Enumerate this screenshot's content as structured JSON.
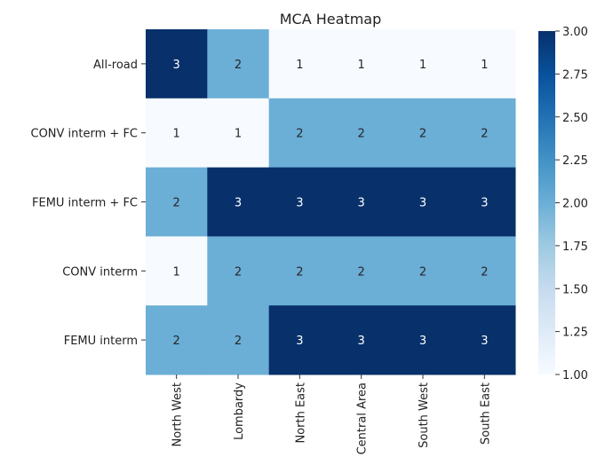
{
  "chart_data": {
    "type": "heatmap",
    "title": "MCA Heatmap",
    "xlabel": "",
    "ylabel": "",
    "rows": [
      "All-road",
      "CONV interm + FC",
      "FEMU interm + FC",
      "CONV interm",
      "FEMU interm"
    ],
    "columns": [
      "North West",
      "Lombardy",
      "North East",
      "Central Area",
      "South West",
      "South East"
    ],
    "values": [
      [
        3,
        2,
        1,
        1,
        1,
        1
      ],
      [
        1,
        1,
        2,
        2,
        2,
        2
      ],
      [
        2,
        3,
        3,
        3,
        3,
        3
      ],
      [
        1,
        2,
        2,
        2,
        2,
        2
      ],
      [
        2,
        2,
        3,
        3,
        3,
        3
      ]
    ],
    "colorbar": {
      "min": 1.0,
      "max": 3.0,
      "ticks": [
        "1.00",
        "1.25",
        "1.50",
        "1.75",
        "2.00",
        "2.25",
        "2.50",
        "2.75",
        "3.00"
      ],
      "colormap": "Blues",
      "stops": [
        "#f7fbff",
        "#deebf7",
        "#c6dbef",
        "#9ecae1",
        "#6baed6",
        "#4292c6",
        "#2171b5",
        "#08519c",
        "#08306b"
      ]
    },
    "annotations": true,
    "grid": false
  }
}
